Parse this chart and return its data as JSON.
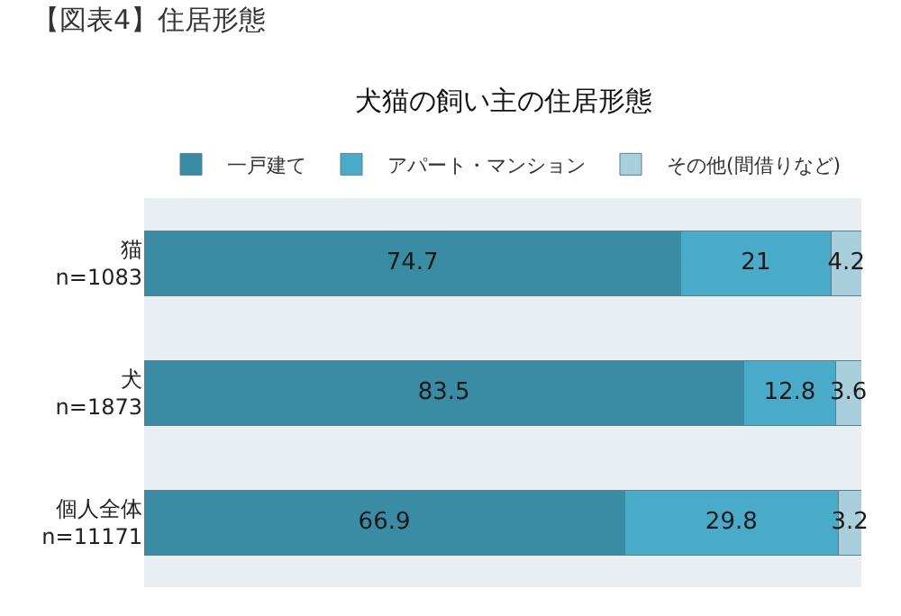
{
  "chart_data": {
    "type": "bar",
    "orientation": "horizontal",
    "stacked": true,
    "title": "【図表4】住居形態",
    "subtitle": "犬猫の飼い主の住居形態",
    "categories": [
      "猫\nn=1083",
      "犬\nn=1873",
      "個人全体\nn=11171"
    ],
    "series": [
      {
        "name": "一戸建て",
        "color": "#3a8ca4",
        "values": [
          74.7,
          83.5,
          66.9
        ]
      },
      {
        "name": "アパート・マンション",
        "color": "#4aabc8",
        "values": [
          21,
          12.8,
          29.8
        ]
      },
      {
        "name": "その他(間借りなど)",
        "color": "#a9cfdc",
        "values": [
          4.2,
          3.6,
          3.2
        ]
      }
    ],
    "data_labels": true,
    "legend": "top",
    "grid": false,
    "tick_labels": "y"
  }
}
